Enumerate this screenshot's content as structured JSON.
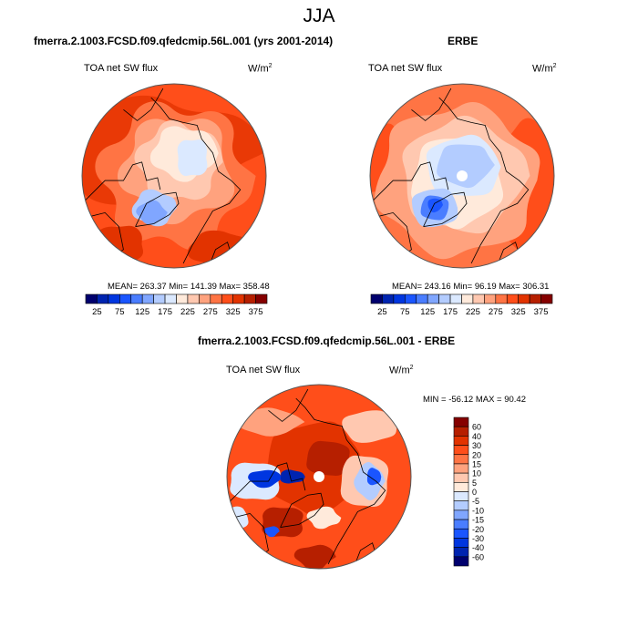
{
  "title": "JJA",
  "panels": [
    {
      "id": "model",
      "title": "fmerra.2.1003.FCSD.f09.qfedcmip.56L.001 (yrs 2001-2014)",
      "left_label": "TOA net SW flux",
      "units_base": "W/m",
      "units_sup": "2",
      "stats": "MEAN= 263.37  Min= 141.39  Max= 358.48"
    },
    {
      "id": "obs",
      "title": "ERBE",
      "left_label": "TOA net SW flux",
      "units_base": "W/m",
      "units_sup": "2",
      "stats": "MEAN= 243.16  Min=  96.19  Max= 306.31"
    },
    {
      "id": "diff",
      "title": "fmerra.2.1003.FCSD.f09.qfedcmip.56L.001 - ERBE",
      "left_label": "TOA net SW flux",
      "units_base": "W/m",
      "units_sup": "2",
      "stats": "MIN = -56.12 MAX =  90.42"
    }
  ],
  "chart_data": [
    {
      "type": "heatmap",
      "projection": "north-polar-stereographic",
      "title": "fmerra.2.1003.FCSD.f09.qfedcmip.56L.001 (yrs 2001-2014)",
      "variable": "TOA net SW flux",
      "units": "W/m2",
      "season": "JJA",
      "mean": 263.37,
      "min": 141.39,
      "max": 358.48,
      "colorbar": {
        "orientation": "horizontal",
        "levels": [
          25,
          50,
          75,
          100,
          125,
          150,
          175,
          200,
          225,
          250,
          275,
          300,
          325,
          350,
          375
        ],
        "tick_labels": [
          "25",
          "75",
          "125",
          "175",
          "225",
          "275",
          "325",
          "375"
        ],
        "colors": [
          "#00006e",
          "#0024b0",
          "#0036e0",
          "#1a55ff",
          "#4a7dff",
          "#80a6ff",
          "#b3ccff",
          "#dbe9ff",
          "#ffeadb",
          "#ffc8b0",
          "#ffa27e",
          "#ff7444",
          "#ff4e1a",
          "#e23300",
          "#b61f00",
          "#850000"
        ]
      }
    },
    {
      "type": "heatmap",
      "projection": "north-polar-stereographic",
      "title": "ERBE",
      "variable": "TOA net SW flux",
      "units": "W/m2",
      "season": "JJA",
      "mean": 243.16,
      "min": 96.19,
      "max": 306.31,
      "colorbar": {
        "orientation": "horizontal",
        "levels": [
          25,
          50,
          75,
          100,
          125,
          150,
          175,
          200,
          225,
          250,
          275,
          300,
          325,
          350,
          375
        ],
        "tick_labels": [
          "25",
          "75",
          "125",
          "175",
          "225",
          "275",
          "325",
          "375"
        ],
        "colors": [
          "#00006e",
          "#0024b0",
          "#0036e0",
          "#1a55ff",
          "#4a7dff",
          "#80a6ff",
          "#b3ccff",
          "#dbe9ff",
          "#ffeadb",
          "#ffc8b0",
          "#ffa27e",
          "#ff7444",
          "#ff4e1a",
          "#e23300",
          "#b61f00",
          "#850000"
        ]
      }
    },
    {
      "type": "heatmap",
      "projection": "north-polar-stereographic",
      "title": "fmerra.2.1003.FCSD.f09.qfedcmip.56L.001 - ERBE",
      "variable": "TOA net SW flux",
      "units": "W/m2",
      "season": "JJA",
      "min": -56.12,
      "max": 90.42,
      "colorbar": {
        "orientation": "vertical",
        "levels": [
          -60,
          -40,
          -30,
          -20,
          -15,
          -10,
          -5,
          0,
          5,
          10,
          15,
          20,
          30,
          40,
          60
        ],
        "tick_labels": [
          "60",
          "40",
          "30",
          "20",
          "15",
          "10",
          "5",
          "0",
          "-5",
          "-10",
          "-15",
          "-20",
          "-30",
          "-40",
          "-60"
        ],
        "colors": [
          "#00006e",
          "#0024b0",
          "#0036e0",
          "#1a55ff",
          "#4a7dff",
          "#80a6ff",
          "#b3ccff",
          "#dbe9ff",
          "#ffeadb",
          "#ffc8b0",
          "#ffa27e",
          "#ff7444",
          "#ff4e1a",
          "#e23300",
          "#b61f00",
          "#850000"
        ]
      }
    }
  ]
}
